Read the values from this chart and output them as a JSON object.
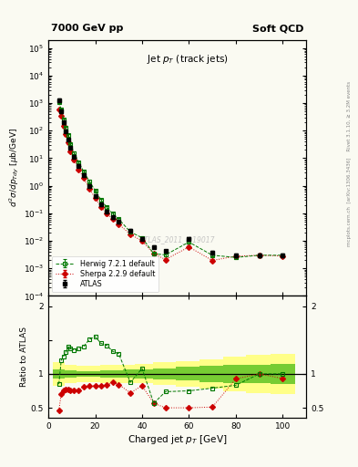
{
  "title_left": "7000 GeV pp",
  "title_right": "Soft QCD",
  "plot_title": "Jet p$_T$ (track jets)",
  "ylabel_main": "d$^2\\sigma$/dp$_{Tdy}$ [$\\mu$b/GeV]",
  "ylabel_ratio": "Ratio to ATLAS",
  "xlabel": "Charged jet p$_T$ [GeV]",
  "watermark": "ATLAS_2011_I919017",
  "right_label": "mcplots.cern.ch [arXiv:1306.3436]  Rivet 3.1.10, ≥ 3.2M events",
  "atlas_x": [
    4.5,
    5.5,
    6.5,
    7.5,
    8.5,
    9.5,
    11.0,
    13.0,
    15.0,
    17.5,
    20.0,
    22.5,
    25.0,
    27.5,
    30.0,
    35.0,
    40.0,
    45.0,
    50.0,
    60.0,
    70.0,
    80.0,
    90.0,
    100.0
  ],
  "atlas_y": [
    1300,
    490,
    195,
    95,
    48,
    24,
    11.5,
    5.2,
    2.4,
    0.97,
    0.43,
    0.21,
    0.115,
    0.072,
    0.048,
    0.024,
    0.012,
    0.006,
    0.0042,
    0.012,
    0.0038,
    0.003,
    0.003,
    0.003
  ],
  "atlas_yerr": [
    130,
    50,
    20,
    10,
    5,
    2.5,
    1.2,
    0.55,
    0.26,
    0.1,
    0.045,
    0.022,
    0.012,
    0.008,
    0.005,
    0.0025,
    0.0013,
    0.0007,
    0.0005,
    0.0013,
    0.0005,
    0.0004,
    0.0004,
    0.0004
  ],
  "herwig_x": [
    4.5,
    5.5,
    6.5,
    7.5,
    8.5,
    9.5,
    11.0,
    13.0,
    15.0,
    17.5,
    20.0,
    22.5,
    25.0,
    27.5,
    30.0,
    35.0,
    40.0,
    45.0,
    50.0,
    60.0,
    70.0,
    80.0,
    90.0,
    100.0
  ],
  "herwig_y": [
    1100,
    590,
    245,
    125,
    67,
    33,
    15.5,
    7.1,
    3.35,
    1.46,
    0.665,
    0.305,
    0.163,
    0.096,
    0.0625,
    0.021,
    0.013,
    0.0034,
    0.0031,
    0.009,
    0.003,
    0.0025,
    0.003,
    0.003
  ],
  "herwig_yerr": [
    110,
    59,
    25,
    13,
    7,
    3.3,
    1.55,
    0.71,
    0.34,
    0.15,
    0.067,
    0.031,
    0.016,
    0.01,
    0.006,
    0.0022,
    0.0013,
    0.00035,
    0.00032,
    0.00095,
    0.00032,
    0.00026,
    0.0003,
    0.0003
  ],
  "sherpa_x": [
    4.5,
    5.5,
    6.5,
    7.5,
    8.5,
    9.5,
    11.0,
    13.0,
    15.0,
    17.5,
    20.0,
    22.5,
    25.0,
    27.5,
    30.0,
    35.0,
    40.0,
    45.0,
    50.0,
    60.0,
    70.0,
    80.0,
    90.0,
    100.0
  ],
  "sherpa_y": [
    598,
    345,
    147,
    73,
    37,
    18.3,
    8.7,
    3.97,
    1.93,
    0.8,
    0.354,
    0.173,
    0.096,
    0.063,
    0.0405,
    0.0173,
    0.0099,
    0.0034,
    0.0021,
    0.006,
    0.00194,
    0.00278,
    0.003,
    0.0028
  ],
  "sherpa_yerr": [
    60,
    35,
    15,
    7.3,
    3.7,
    1.83,
    0.87,
    0.4,
    0.193,
    0.08,
    0.0354,
    0.0173,
    0.0096,
    0.0063,
    0.0041,
    0.0017,
    0.001,
    0.00034,
    0.00022,
    0.00062,
    0.0002,
    0.00029,
    0.0003,
    0.00029
  ],
  "herwig_ratio": [
    0.85,
    1.2,
    1.26,
    1.32,
    1.4,
    1.38,
    1.35,
    1.37,
    1.4,
    1.51,
    1.55,
    1.45,
    1.42,
    1.33,
    1.3,
    0.875,
    1.08,
    0.567,
    0.738,
    0.75,
    0.79,
    0.833,
    1.0,
    1.0
  ],
  "sherpa_ratio": [
    0.46,
    0.704,
    0.754,
    0.768,
    0.771,
    0.763,
    0.757,
    0.763,
    0.804,
    0.825,
    0.823,
    0.824,
    0.835,
    0.875,
    0.844,
    0.721,
    0.825,
    0.567,
    0.5,
    0.5,
    0.511,
    0.927,
    1.0,
    0.933
  ],
  "atlas_color": "#000000",
  "herwig_color": "#007700",
  "sherpa_color": "#cc0000",
  "band_yellow_x": [
    4.5,
    9.5,
    14.5,
    19.5,
    24.5,
    29.5,
    34.5,
    39.5,
    49.5,
    59.5,
    69.5,
    79.5,
    89.5,
    100.0
  ],
  "band_yellow_low": [
    0.83,
    0.87,
    0.88,
    0.88,
    0.87,
    0.87,
    0.86,
    0.86,
    0.84,
    0.81,
    0.78,
    0.75,
    0.72,
    0.7
  ],
  "band_yellow_high": [
    1.17,
    1.13,
    1.12,
    1.12,
    1.13,
    1.13,
    1.14,
    1.15,
    1.17,
    1.19,
    1.22,
    1.25,
    1.28,
    1.3
  ],
  "band_green_x": [
    4.5,
    9.5,
    14.5,
    19.5,
    24.5,
    29.5,
    34.5,
    39.5,
    49.5,
    59.5,
    69.5,
    79.5,
    89.5,
    100.0
  ],
  "band_green_low": [
    0.93,
    0.95,
    0.96,
    0.96,
    0.95,
    0.95,
    0.94,
    0.93,
    0.92,
    0.9,
    0.88,
    0.87,
    0.86,
    0.85
  ],
  "band_green_high": [
    1.07,
    1.05,
    1.04,
    1.04,
    1.05,
    1.05,
    1.06,
    1.07,
    1.08,
    1.1,
    1.12,
    1.13,
    1.14,
    1.15
  ],
  "xlim": [
    0,
    110
  ],
  "ylim_main": [
    0.0001,
    200000.0
  ],
  "ylim_ratio": [
    0.35,
    2.15
  ],
  "background_color": "#fafaf2",
  "frame_color": "#aaaaaa"
}
